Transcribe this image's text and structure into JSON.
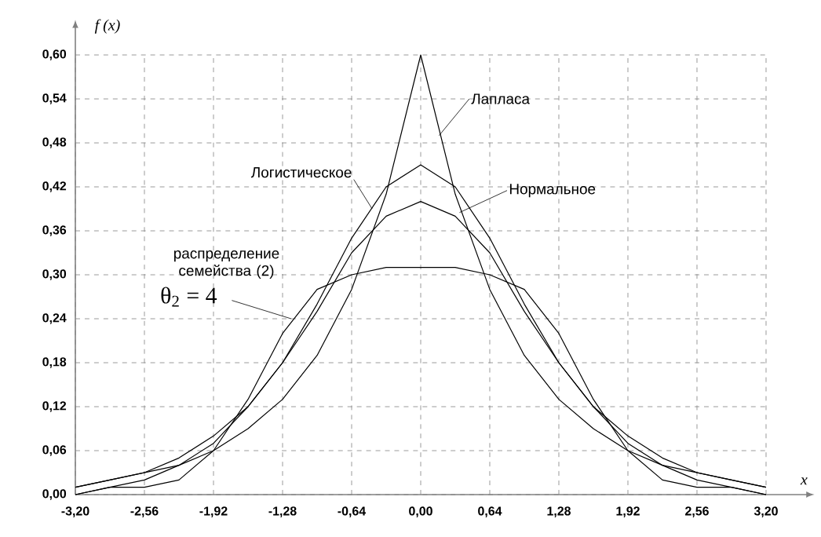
{
  "chart_data": {
    "type": "line",
    "xlabel": "x",
    "ylabel": "f (x)",
    "x": [
      -3.2,
      -2.88,
      -2.56,
      -2.24,
      -1.92,
      -1.6,
      -1.28,
      -0.96,
      -0.64,
      -0.32,
      0,
      0.32,
      0.64,
      0.96,
      1.28,
      1.6,
      1.92,
      2.24,
      2.56,
      2.88,
      3.2
    ],
    "series": [
      {
        "name": "Лапласа",
        "color": "#000000",
        "values": [
          0.01,
          0.02,
          0.03,
          0.04,
          0.06,
          0.09,
          0.13,
          0.19,
          0.28,
          0.41,
          0.6,
          0.41,
          0.28,
          0.19,
          0.13,
          0.09,
          0.06,
          0.04,
          0.03,
          0.02,
          0.01
        ]
      },
      {
        "name": "Логистическое",
        "color": "#000000",
        "values": [
          0.01,
          0.02,
          0.03,
          0.05,
          0.08,
          0.12,
          0.18,
          0.26,
          0.35,
          0.42,
          0.45,
          0.42,
          0.35,
          0.26,
          0.18,
          0.12,
          0.08,
          0.05,
          0.03,
          0.02,
          0.01
        ]
      },
      {
        "name": "Нормальное",
        "color": "#000000",
        "values": [
          0.0,
          0.01,
          0.02,
          0.04,
          0.07,
          0.12,
          0.18,
          0.25,
          0.33,
          0.38,
          0.4,
          0.38,
          0.33,
          0.25,
          0.18,
          0.12,
          0.07,
          0.04,
          0.02,
          0.01,
          0.0
        ]
      },
      {
        "name": "распределение семейства (2)",
        "color": "#000000",
        "values": [
          0.0,
          0.01,
          0.01,
          0.02,
          0.06,
          0.13,
          0.22,
          0.28,
          0.3,
          0.31,
          0.31,
          0.31,
          0.3,
          0.28,
          0.22,
          0.13,
          0.06,
          0.02,
          0.01,
          0.01,
          0.0
        ]
      }
    ],
    "annotations": [
      {
        "text": "θ$_{2}$ = 4",
        "x": -1.2,
        "y": 0.24
      }
    ],
    "xlim": [
      -3.2,
      3.2
    ],
    "ylim": [
      0,
      0.6
    ],
    "xticks": [
      {
        "value": -3.2,
        "label": "-3,20"
      },
      {
        "value": -2.56,
        "label": "-2,56"
      },
      {
        "value": -1.92,
        "label": "-1,92"
      },
      {
        "value": -1.28,
        "label": "-1,28"
      },
      {
        "value": -0.64,
        "label": "-0,64"
      },
      {
        "value": 0,
        "label": "0,00"
      },
      {
        "value": 0.64,
        "label": "0,64"
      },
      {
        "value": 1.28,
        "label": "1,28"
      },
      {
        "value": 1.92,
        "label": "1,92"
      },
      {
        "value": 2.56,
        "label": "2,56"
      },
      {
        "value": 3.2,
        "label": "3,20"
      }
    ],
    "yticks": [
      {
        "value": 0,
        "label": "0,00"
      },
      {
        "value": 0.06,
        "label": "0,06"
      },
      {
        "value": 0.12,
        "label": "0,12"
      },
      {
        "value": 0.18,
        "label": "0,18"
      },
      {
        "value": 0.24,
        "label": "0,24"
      },
      {
        "value": 0.3,
        "label": "0,30"
      },
      {
        "value": 0.36,
        "label": "0,36"
      },
      {
        "value": 0.42,
        "label": "0,42"
      },
      {
        "value": 0.48,
        "label": "0,48"
      },
      {
        "value": 0.54,
        "label": "0,54"
      },
      {
        "value": 0.6,
        "label": "0,60"
      }
    ],
    "grid": true,
    "legend": false,
    "marker": "none",
    "line_style": "solid"
  }
}
